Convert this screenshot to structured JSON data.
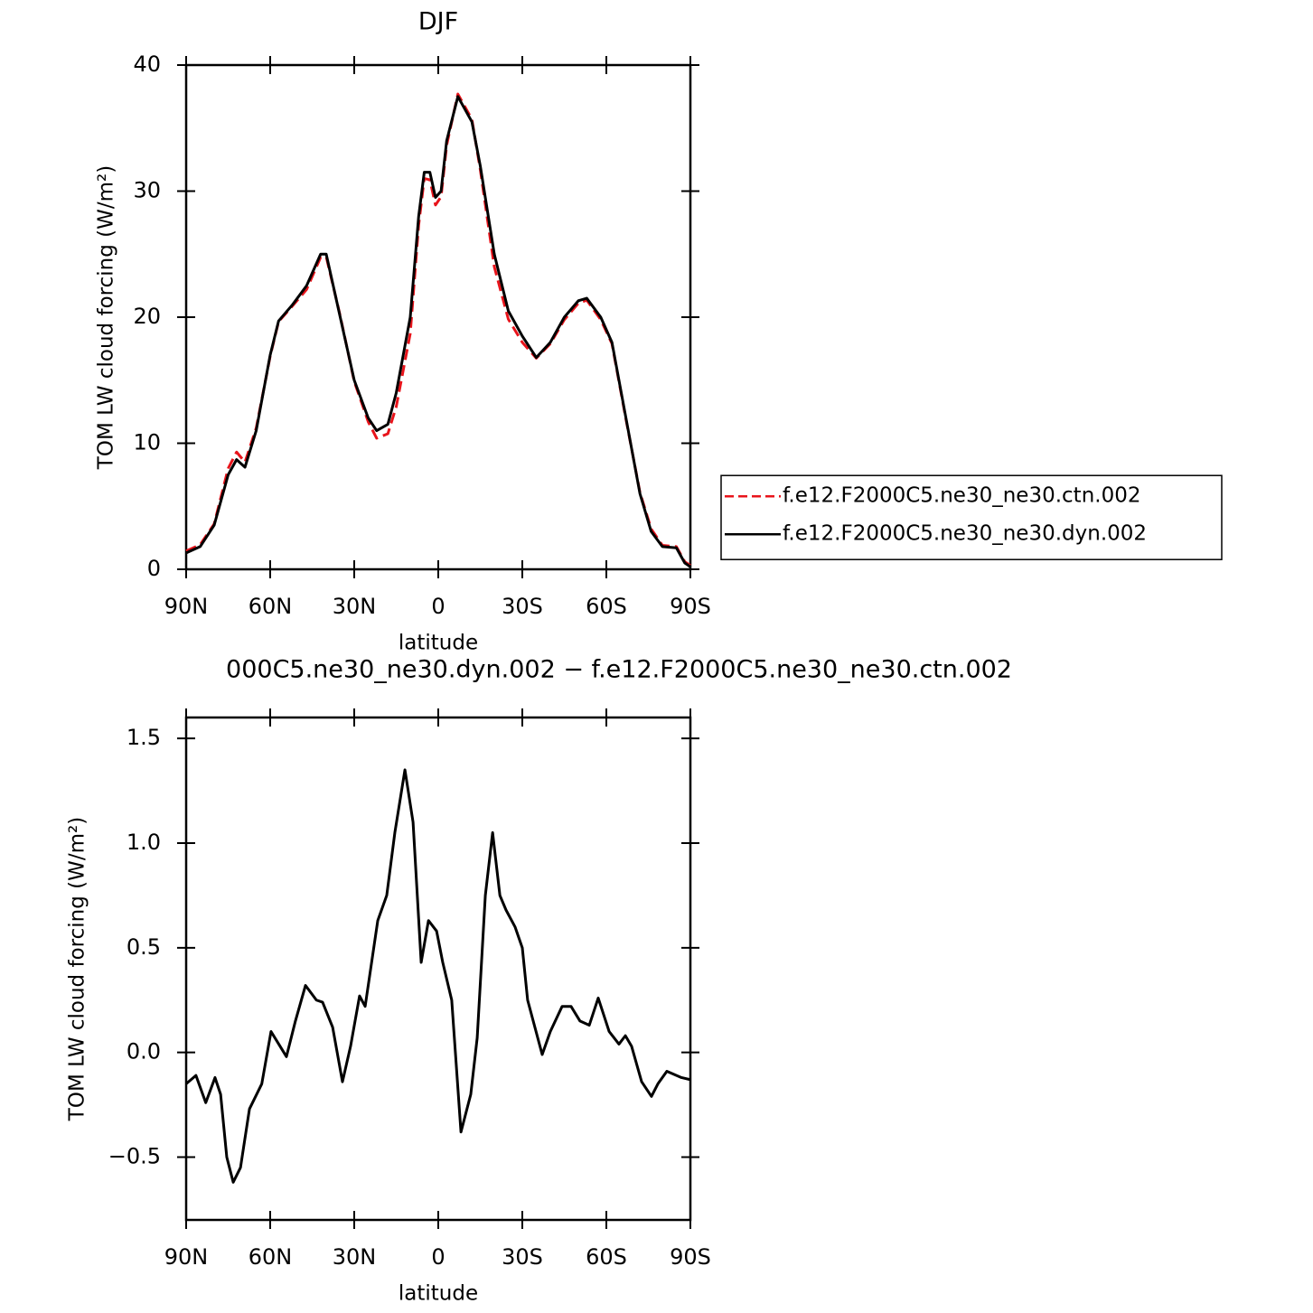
{
  "chart_data": [
    {
      "type": "line",
      "title": "DJF",
      "xlabel": "latitude",
      "ylabel": "TOM LW cloud forcing (W/m²)",
      "xlim": [
        90,
        -90
      ],
      "xticks": [
        {
          "value": 90,
          "label": "90N"
        },
        {
          "value": 60,
          "label": "60N"
        },
        {
          "value": 30,
          "label": "30N"
        },
        0,
        {
          "value": -30,
          "label": "30S"
        },
        {
          "value": -60,
          "label": "60S"
        },
        {
          "value": -90,
          "label": "90S"
        }
      ],
      "ylim": [
        0,
        40
      ],
      "yticks": [
        0,
        10,
        20,
        30,
        40
      ],
      "legend": "right",
      "x": [
        90,
        85,
        80,
        75,
        72,
        69,
        65,
        60,
        57,
        52,
        47,
        42,
        40,
        35,
        30,
        25,
        22,
        18,
        15,
        10,
        7,
        5,
        3,
        1,
        -1,
        -3,
        -7,
        -12,
        -15,
        -20,
        -25,
        -30,
        -35,
        -40,
        -45,
        -50,
        -53,
        -58,
        -62,
        -67,
        -72,
        -76,
        -80,
        -85,
        -88,
        -90
      ],
      "series": [
        {
          "name": "f.e12.F2000C5.ne30_ne30.ctn.002",
          "color": "#e8141b",
          "dashed": true,
          "values": [
            1.45,
            1.95,
            3.6,
            8,
            9.3,
            8.5,
            11.2,
            16.9,
            19.65,
            20.9,
            22.2,
            24.75,
            24.8,
            20.1,
            14.9,
            11.7,
            10.4,
            10.75,
            12.9,
            18.7,
            27.3,
            31,
            30.9,
            28.9,
            29.55,
            33.65,
            37.7,
            35.7,
            31.7,
            24,
            19.85,
            18,
            16.75,
            17.9,
            19.8,
            21.1,
            21.35,
            19.8,
            17.9,
            11.9,
            6.1,
            3.2,
            1.9,
            1.8,
            0.6,
            0.3
          ]
        },
        {
          "name": "f.e12.F2000C5.ne30_ne30.dyn.002",
          "color": "#000000",
          "dashed": false,
          "values": [
            1.3,
            1.8,
            3.5,
            7.5,
            8.7,
            8.1,
            11,
            17,
            19.7,
            21,
            22.5,
            25,
            25,
            20,
            15,
            12,
            11,
            11.5,
            14,
            20,
            28,
            31.5,
            31.5,
            29.5,
            30,
            34,
            37.5,
            35.5,
            32,
            25,
            20.5,
            18.5,
            16.8,
            18,
            20,
            21.3,
            21.5,
            20,
            18,
            12,
            6,
            3,
            1.8,
            1.7,
            0.5,
            0.2
          ]
        }
      ]
    },
    {
      "type": "line",
      "title": "000C5.ne30_ne30.dyn.002 − f.e12.F2000C5.ne30_ne30.ctn.002",
      "xlabel": "latitude",
      "ylabel": "TOM LW cloud forcing (W/m²)",
      "xlim": [
        90,
        -90
      ],
      "xticks": [
        {
          "value": 90,
          "label": "90N"
        },
        {
          "value": 60,
          "label": "60N"
        },
        {
          "value": 30,
          "label": "30N"
        },
        0,
        {
          "value": -30,
          "label": "30S"
        },
        {
          "value": -60,
          "label": "60S"
        },
        {
          "value": -90,
          "label": "90S"
        }
      ],
      "ylim": [
        -0.8,
        1.6
      ],
      "yticks": [
        {
          "value": -0.5,
          "label": "−0.5"
        },
        {
          "value": 0,
          "label": "0.0"
        },
        0.5,
        {
          "value": 1,
          "label": "1.0"
        },
        1.5
      ],
      "x": [
        90,
        86.5,
        83,
        79.7,
        77.7,
        75.5,
        73.2,
        70.6,
        67.4,
        63,
        59.7,
        56.5,
        54.2,
        51,
        47.4,
        43.5,
        41.3,
        37.7,
        34.2,
        31.3,
        28.1,
        26.1,
        21.6,
        18.4,
        15.5,
        11.9,
        9,
        6.1,
        3.5,
        0.6,
        -1.6,
        -4.8,
        -8.1,
        -11.6,
        -13.9,
        -16.8,
        -19.4,
        -22,
        -24.2,
        -27.4,
        -30,
        -31.9,
        -37.1,
        -40,
        -44.2,
        -47.4,
        -50.6,
        -53.9,
        -57.1,
        -61,
        -64.5,
        -66.8,
        -69,
        -72.6,
        -76.1,
        -78.4,
        -81.6,
        -86.8,
        -90
      ],
      "series": [
        {
          "name": null,
          "color": "#000000",
          "dashed": false,
          "values": [
            -0.15,
            -0.11,
            -0.24,
            -0.12,
            -0.2,
            -0.5,
            -0.62,
            -0.55,
            -0.27,
            -0.15,
            0.1,
            0.03,
            -0.02,
            0.15,
            0.32,
            0.25,
            0.24,
            0.12,
            -0.14,
            0.03,
            0.27,
            0.22,
            0.63,
            0.75,
            1.05,
            1.35,
            1.1,
            0.43,
            0.63,
            0.58,
            0.43,
            0.25,
            -0.38,
            -0.2,
            0.07,
            0.75,
            1.05,
            0.75,
            0.68,
            0.6,
            0.5,
            0.25,
            -0.01,
            0.1,
            0.22,
            0.22,
            0.15,
            0.13,
            0.26,
            0.1,
            0.04,
            0.08,
            0.03,
            -0.14,
            -0.21,
            -0.15,
            -0.09,
            -0.12,
            -0.13
          ]
        }
      ]
    }
  ]
}
